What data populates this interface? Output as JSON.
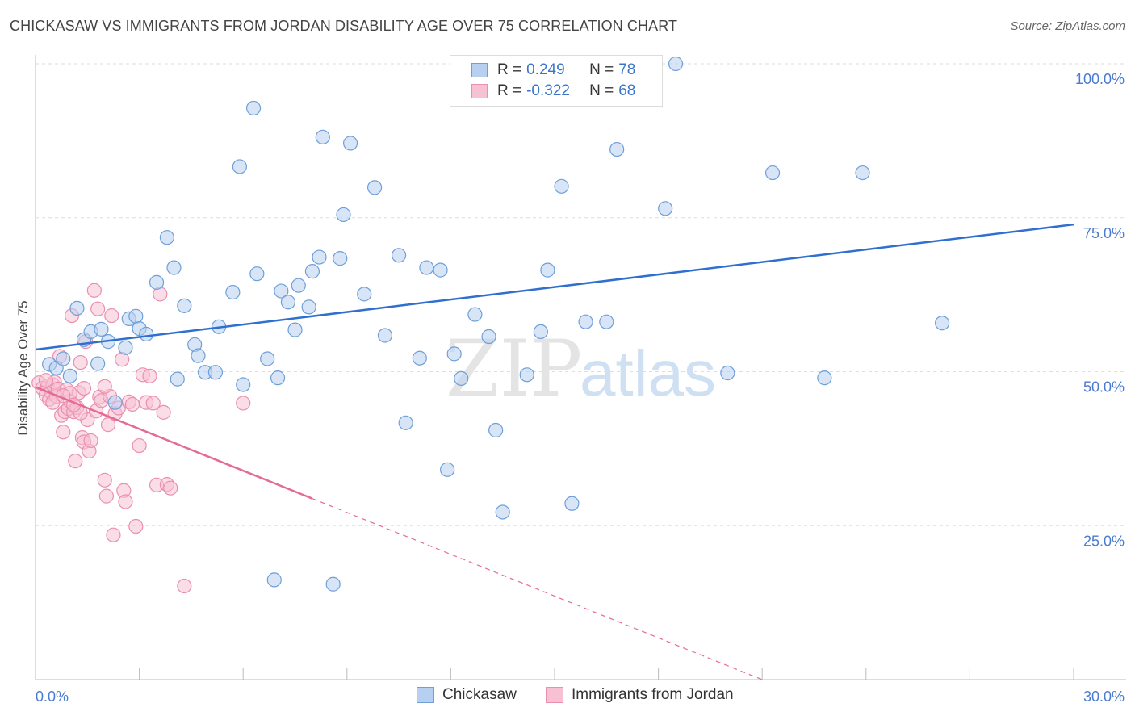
{
  "title": "CHICKASAW VS IMMIGRANTS FROM JORDAN DISABILITY AGE OVER 75 CORRELATION CHART",
  "source": "Source: ZipAtlas.com",
  "watermark": {
    "zip": "ZIP",
    "atlas": "atlas"
  },
  "legend": {
    "rows": [
      {
        "r_label": "R = ",
        "r_value": "0.249",
        "n_label": "N = ",
        "n_value": "78"
      },
      {
        "r_label": "R = ",
        "r_value": "-0.322",
        "n_label": "N = ",
        "n_value": "68"
      }
    ]
  },
  "bottom_legend": {
    "series_a": "Chickasaw",
    "series_b": "Immigrants from Jordan"
  },
  "colors": {
    "chickasaw_fill": "#b8d0f0",
    "chickasaw_stroke": "#6e9fd9",
    "chickasaw_line": "#2f6fcf",
    "jordan_fill": "#f7c1d3",
    "jordan_stroke": "#ea8fae",
    "jordan_line": "#e46b94",
    "tick_label": "#4a7bd0",
    "grid": "#dedede"
  },
  "chart_data": {
    "type": "scatter",
    "title": "CHICKASAW VS IMMIGRANTS FROM JORDAN DISABILITY AGE OVER 75 CORRELATION CHART",
    "xlabel": "",
    "ylabel": "Disability Age Over 75",
    "xlim": [
      0,
      30
    ],
    "ylim": [
      0,
      100
    ],
    "x_tick_labels": [
      "0.0%",
      "30.0%"
    ],
    "y_ticks": [
      25,
      50,
      75,
      100
    ],
    "y_tick_labels": [
      "25.0%",
      "50.0%",
      "75.0%",
      "100.0%"
    ],
    "grid": "horizontal dashed",
    "legend_position": "top-center",
    "series": [
      {
        "name": "Chickasaw",
        "R": 0.249,
        "N": 78,
        "trend": {
          "x": [
            0,
            30
          ],
          "y": [
            53.6,
            73.9
          ]
        },
        "points": [
          [
            0.4,
            51.2
          ],
          [
            0.6,
            50.6
          ],
          [
            0.8,
            52.1
          ],
          [
            1.0,
            49.3
          ],
          [
            1.2,
            60.3
          ],
          [
            1.4,
            55.2
          ],
          [
            1.6,
            56.5
          ],
          [
            1.9,
            56.9
          ],
          [
            1.8,
            51.3
          ],
          [
            2.1,
            54.9
          ],
          [
            2.3,
            45.0
          ],
          [
            2.6,
            53.9
          ],
          [
            2.7,
            58.6
          ],
          [
            2.9,
            59.0
          ],
          [
            3.0,
            57.0
          ],
          [
            3.2,
            56.1
          ],
          [
            3.5,
            64.5
          ],
          [
            3.8,
            71.8
          ],
          [
            4.0,
            66.9
          ],
          [
            4.1,
            48.8
          ],
          [
            4.3,
            60.7
          ],
          [
            4.6,
            54.4
          ],
          [
            4.7,
            52.6
          ],
          [
            4.9,
            49.9
          ],
          [
            5.2,
            49.9
          ],
          [
            5.3,
            57.3
          ],
          [
            5.7,
            62.9
          ],
          [
            5.9,
            83.3
          ],
          [
            6.0,
            47.9
          ],
          [
            6.3,
            92.8
          ],
          [
            6.4,
            65.9
          ],
          [
            6.7,
            52.1
          ],
          [
            6.9,
            16.2
          ],
          [
            7.0,
            49.0
          ],
          [
            7.1,
            63.1
          ],
          [
            7.3,
            61.3
          ],
          [
            7.5,
            56.8
          ],
          [
            7.6,
            64.0
          ],
          [
            7.9,
            60.5
          ],
          [
            8.0,
            66.3
          ],
          [
            8.2,
            68.6
          ],
          [
            8.3,
            88.1
          ],
          [
            8.6,
            15.5
          ],
          [
            8.8,
            68.4
          ],
          [
            8.9,
            75.5
          ],
          [
            9.1,
            87.1
          ],
          [
            9.5,
            62.6
          ],
          [
            9.8,
            79.9
          ],
          [
            10.1,
            55.9
          ],
          [
            10.5,
            68.9
          ],
          [
            10.7,
            41.7
          ],
          [
            11.1,
            52.2
          ],
          [
            11.3,
            66.9
          ],
          [
            11.7,
            66.5
          ],
          [
            11.9,
            34.1
          ],
          [
            12.1,
            52.9
          ],
          [
            12.3,
            48.9
          ],
          [
            12.7,
            59.3
          ],
          [
            13.1,
            55.7
          ],
          [
            13.3,
            40.5
          ],
          [
            13.5,
            27.2
          ],
          [
            14.6,
            56.5
          ],
          [
            14.8,
            66.5
          ],
          [
            15.2,
            80.1
          ],
          [
            15.5,
            28.6
          ],
          [
            15.9,
            58.1
          ],
          [
            16.5,
            58.1
          ],
          [
            16.8,
            86.1
          ],
          [
            17.6,
            100.0
          ],
          [
            18.2,
            76.5
          ],
          [
            18.5,
            100.0
          ],
          [
            20.0,
            49.8
          ],
          [
            21.3,
            82.3
          ],
          [
            22.8,
            49.0
          ],
          [
            23.9,
            82.3
          ],
          [
            26.2,
            57.9
          ],
          [
            14.2,
            49.5
          ],
          [
            16.0,
            99.5
          ]
        ]
      },
      {
        "name": "Immigrants from Jordan",
        "R": -0.322,
        "N": 68,
        "trend": {
          "x": [
            0,
            8.0
          ],
          "y": [
            47.5,
            29.4
          ]
        },
        "trend_dashed": {
          "x": [
            8.0,
            21.0
          ],
          "y": [
            29.4,
            0.0
          ]
        },
        "points": [
          [
            0.1,
            48.2
          ],
          [
            0.2,
            47.3
          ],
          [
            0.3,
            46.2
          ],
          [
            0.35,
            47.7
          ],
          [
            0.4,
            45.5
          ],
          [
            0.45,
            46.7
          ],
          [
            0.5,
            47.9
          ],
          [
            0.55,
            48.3
          ],
          [
            0.6,
            46.0
          ],
          [
            0.65,
            47.2
          ],
          [
            0.7,
            52.5
          ],
          [
            0.75,
            42.9
          ],
          [
            0.8,
            40.2
          ],
          [
            0.85,
            43.5
          ],
          [
            0.9,
            47.1
          ],
          [
            0.95,
            44.0
          ],
          [
            1.0,
            45.2
          ],
          [
            1.05,
            59.1
          ],
          [
            1.1,
            43.5
          ],
          [
            1.15,
            35.5
          ],
          [
            1.2,
            44.2
          ],
          [
            1.25,
            46.6
          ],
          [
            1.3,
            51.5
          ],
          [
            1.35,
            39.3
          ],
          [
            1.4,
            38.6
          ],
          [
            1.45,
            54.9
          ],
          [
            1.5,
            42.2
          ],
          [
            1.55,
            37.1
          ],
          [
            1.6,
            38.8
          ],
          [
            1.7,
            63.2
          ],
          [
            1.75,
            43.6
          ],
          [
            1.8,
            60.2
          ],
          [
            1.85,
            45.9
          ],
          [
            1.9,
            45.3
          ],
          [
            2.0,
            32.4
          ],
          [
            2.05,
            29.8
          ],
          [
            2.1,
            41.4
          ],
          [
            2.15,
            46.0
          ],
          [
            2.2,
            59.1
          ],
          [
            2.25,
            23.5
          ],
          [
            2.3,
            43.2
          ],
          [
            2.4,
            44.1
          ],
          [
            2.5,
            52.0
          ],
          [
            2.55,
            30.7
          ],
          [
            2.6,
            28.9
          ],
          [
            2.7,
            45.1
          ],
          [
            2.8,
            44.7
          ],
          [
            2.9,
            24.9
          ],
          [
            3.0,
            38.0
          ],
          [
            3.1,
            49.5
          ],
          [
            3.2,
            45.0
          ],
          [
            3.3,
            49.3
          ],
          [
            3.4,
            44.9
          ],
          [
            3.5,
            31.6
          ],
          [
            3.6,
            62.6
          ],
          [
            3.7,
            43.4
          ],
          [
            3.8,
            31.7
          ],
          [
            3.9,
            31.1
          ],
          [
            4.3,
            15.2
          ],
          [
            6.0,
            44.9
          ],
          [
            1.0,
            46.5
          ],
          [
            0.5,
            45.0
          ],
          [
            1.4,
            47.3
          ],
          [
            0.3,
            48.6
          ],
          [
            2.0,
            47.6
          ],
          [
            1.3,
            43.3
          ],
          [
            0.8,
            46.1
          ],
          [
            1.1,
            44.6
          ]
        ]
      }
    ]
  }
}
